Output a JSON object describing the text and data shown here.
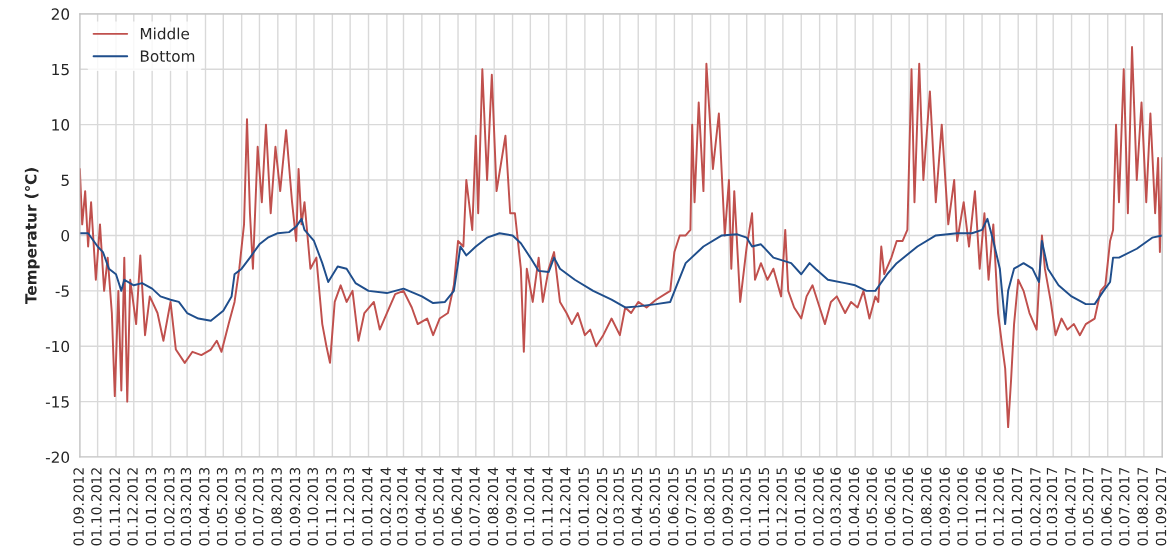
{
  "chart_data": {
    "type": "line",
    "ylabel": "Temperatur (℃)",
    "xlim": [
      "2012-09-01",
      "2017-09-01"
    ],
    "xticks": [
      {
        "value": "2012-09-01",
        "label": "01.09.2012"
      },
      {
        "value": "2012-10-01",
        "label": "01.10.2012"
      },
      {
        "value": "2012-11-01",
        "label": "01.11.2012"
      },
      {
        "value": "2012-12-01",
        "label": "01.12.2012"
      },
      {
        "value": "2013-01-01",
        "label": "01.01.2013"
      },
      {
        "value": "2013-02-01",
        "label": "01.02.2013"
      },
      {
        "value": "2013-03-01",
        "label": "01.03.2013"
      },
      {
        "value": "2013-04-01",
        "label": "01.04.2013"
      },
      {
        "value": "2013-05-01",
        "label": "01.05.2013"
      },
      {
        "value": "2013-06-01",
        "label": "01.06.2013"
      },
      {
        "value": "2013-07-01",
        "label": "01.07.2013"
      },
      {
        "value": "2013-08-01",
        "label": "01.08.2013"
      },
      {
        "value": "2013-09-01",
        "label": "01.09.2013"
      },
      {
        "value": "2013-10-01",
        "label": "01.10.2013"
      },
      {
        "value": "2013-11-01",
        "label": "01.11.2013"
      },
      {
        "value": "2013-12-01",
        "label": "01.12.2013"
      },
      {
        "value": "2014-01-01",
        "label": "01.01.2014"
      },
      {
        "value": "2014-02-01",
        "label": "01.02.2014"
      },
      {
        "value": "2014-03-01",
        "label": "01.03.2014"
      },
      {
        "value": "2014-04-01",
        "label": "01.04.2014"
      },
      {
        "value": "2014-05-01",
        "label": "01.05.2014"
      },
      {
        "value": "2014-06-01",
        "label": "01.06.2014"
      },
      {
        "value": "2014-07-01",
        "label": "01.07.2014"
      },
      {
        "value": "2014-08-01",
        "label": "01.08.2014"
      },
      {
        "value": "2014-09-01",
        "label": "01.09.2014"
      },
      {
        "value": "2014-10-01",
        "label": "01.10.2014"
      },
      {
        "value": "2014-11-01",
        "label": "01.11.2014"
      },
      {
        "value": "2014-12-01",
        "label": "01.12.2014"
      },
      {
        "value": "2015-01-01",
        "label": "01.01.2015"
      },
      {
        "value": "2015-02-01",
        "label": "01.02.2015"
      },
      {
        "value": "2015-03-01",
        "label": "01.03.2015"
      },
      {
        "value": "2015-04-01",
        "label": "01.04.2015"
      },
      {
        "value": "2015-05-01",
        "label": "01.05.2015"
      },
      {
        "value": "2015-06-01",
        "label": "01.06.2015"
      },
      {
        "value": "2015-07-01",
        "label": "01.07.2015"
      },
      {
        "value": "2015-08-01",
        "label": "01.08.2015"
      },
      {
        "value": "2015-09-01",
        "label": "01.09.2015"
      },
      {
        "value": "2015-10-01",
        "label": "01.10.2015"
      },
      {
        "value": "2015-11-01",
        "label": "01.11.2015"
      },
      {
        "value": "2015-12-01",
        "label": "01.12.2015"
      },
      {
        "value": "2016-01-01",
        "label": "01.01.2016"
      },
      {
        "value": "2016-02-01",
        "label": "01.02.2016"
      },
      {
        "value": "2016-03-01",
        "label": "01.03.2016"
      },
      {
        "value": "2016-04-01",
        "label": "01.04.2016"
      },
      {
        "value": "2016-05-01",
        "label": "01.05.2016"
      },
      {
        "value": "2016-06-01",
        "label": "01.06.2016"
      },
      {
        "value": "2016-07-01",
        "label": "01.07.2016"
      },
      {
        "value": "2016-08-01",
        "label": "01.08.2016"
      },
      {
        "value": "2016-09-01",
        "label": "01.09.2016"
      },
      {
        "value": "2016-10-01",
        "label": "01.10.2016"
      },
      {
        "value": "2016-11-01",
        "label": "01.11.2016"
      },
      {
        "value": "2016-12-01",
        "label": "01.12.2016"
      },
      {
        "value": "2017-01-01",
        "label": "01.01.2017"
      },
      {
        "value": "2017-02-01",
        "label": "01.02.2017"
      },
      {
        "value": "2017-03-01",
        "label": "01.03.2017"
      },
      {
        "value": "2017-04-01",
        "label": "01.04.2017"
      },
      {
        "value": "2017-05-01",
        "label": "01.05.2017"
      },
      {
        "value": "2017-06-01",
        "label": "01.06.2017"
      },
      {
        "value": "2017-07-01",
        "label": "01.07.2017"
      },
      {
        "value": "2017-08-01",
        "label": "01.08.2017"
      },
      {
        "value": "2017-09-01",
        "label": "01.09.2017"
      }
    ],
    "ylim": [
      -20,
      20
    ],
    "yticks": [
      -20,
      -15,
      -10,
      -5,
      0,
      5,
      10,
      15,
      20
    ],
    "grid": true,
    "legend": "top left",
    "line_style": "solid",
    "marker": "none",
    "series": [
      {
        "name": "Middle",
        "color": "#c0504d",
        "x": [
          "2012-09-01",
          "2012-09-05",
          "2012-09-10",
          "2012-09-15",
          "2012-09-20",
          "2012-09-28",
          "2012-10-05",
          "2012-10-12",
          "2012-10-18",
          "2012-10-25",
          "2012-10-30",
          "2012-11-05",
          "2012-11-10",
          "2012-11-15",
          "2012-11-20",
          "2012-11-25",
          "2012-12-05",
          "2012-12-12",
          "2012-12-20",
          "2012-12-28",
          "2013-01-10",
          "2013-01-20",
          "2013-02-01",
          "2013-02-10",
          "2013-02-25",
          "2013-03-10",
          "2013-03-25",
          "2013-04-10",
          "2013-04-20",
          "2013-04-28",
          "2013-05-10",
          "2013-05-20",
          "2013-05-28",
          "2013-06-05",
          "2013-06-10",
          "2013-06-15",
          "2013-06-20",
          "2013-06-28",
          "2013-07-05",
          "2013-07-12",
          "2013-07-20",
          "2013-07-28",
          "2013-08-05",
          "2013-08-15",
          "2013-08-25",
          "2013-09-01",
          "2013-09-05",
          "2013-09-10",
          "2013-09-15",
          "2013-09-25",
          "2013-10-05",
          "2013-10-15",
          "2013-10-22",
          "2013-10-28",
          "2013-11-05",
          "2013-11-15",
          "2013-11-25",
          "2013-12-05",
          "2013-12-15",
          "2013-12-25",
          "2014-01-10",
          "2014-01-20",
          "2014-02-01",
          "2014-02-15",
          "2014-03-01",
          "2014-03-15",
          "2014-03-25",
          "2014-04-10",
          "2014-04-20",
          "2014-05-01",
          "2014-05-15",
          "2014-05-25",
          "2014-06-01",
          "2014-06-10",
          "2014-06-15",
          "2014-06-25",
          "2014-07-01",
          "2014-07-05",
          "2014-07-12",
          "2014-07-20",
          "2014-07-28",
          "2014-08-05",
          "2014-08-20",
          "2014-08-28",
          "2014-09-05",
          "2014-09-15",
          "2014-09-20",
          "2014-09-25",
          "2014-10-05",
          "2014-10-15",
          "2014-10-22",
          "2014-11-01",
          "2014-11-10",
          "2014-11-20",
          "2014-12-01",
          "2014-12-10",
          "2014-12-20",
          "2015-01-01",
          "2015-01-10",
          "2015-01-20",
          "2015-02-01",
          "2015-02-15",
          "2015-03-01",
          "2015-03-10",
          "2015-03-20",
          "2015-04-01",
          "2015-04-15",
          "2015-05-01",
          "2015-05-25",
          "2015-06-01",
          "2015-06-10",
          "2015-06-20",
          "2015-06-28",
          "2015-07-01",
          "2015-07-05",
          "2015-07-12",
          "2015-07-20",
          "2015-07-25",
          "2015-08-05",
          "2015-08-15",
          "2015-08-25",
          "2015-09-01",
          "2015-09-05",
          "2015-09-10",
          "2015-09-20",
          "2015-10-01",
          "2015-10-10",
          "2015-10-15",
          "2015-10-25",
          "2015-11-05",
          "2015-11-15",
          "2015-11-28",
          "2015-12-05",
          "2015-12-10",
          "2015-12-20",
          "2016-01-01",
          "2016-01-10",
          "2016-01-20",
          "2016-02-01",
          "2016-02-10",
          "2016-02-20",
          "2016-03-01",
          "2016-03-15",
          "2016-03-25",
          "2016-04-05",
          "2016-04-15",
          "2016-04-25",
          "2016-05-05",
          "2016-05-10",
          "2016-05-15",
          "2016-05-20",
          "2016-06-01",
          "2016-06-10",
          "2016-06-20",
          "2016-06-28",
          "2016-07-05",
          "2016-07-10",
          "2016-07-18",
          "2016-07-25",
          "2016-08-05",
          "2016-08-15",
          "2016-08-25",
          "2016-09-05",
          "2016-09-15",
          "2016-09-20",
          "2016-10-01",
          "2016-10-10",
          "2016-10-20",
          "2016-10-28",
          "2016-11-05",
          "2016-11-12",
          "2016-11-20",
          "2016-11-28",
          "2016-12-05",
          "2016-12-10",
          "2016-12-15",
          "2016-12-20",
          "2016-12-25",
          "2017-01-01",
          "2017-01-10",
          "2017-01-20",
          "2017-02-01",
          "2017-02-05",
          "2017-02-10",
          "2017-02-15",
          "2017-02-25",
          "2017-03-05",
          "2017-03-15",
          "2017-03-25",
          "2017-04-05",
          "2017-04-15",
          "2017-04-25",
          "2017-05-10",
          "2017-05-20",
          "2017-05-28",
          "2017-06-05",
          "2017-06-10",
          "2017-06-15",
          "2017-06-20",
          "2017-06-28",
          "2017-07-05",
          "2017-07-12",
          "2017-07-20",
          "2017-07-28",
          "2017-08-05",
          "2017-08-12",
          "2017-08-20",
          "2017-08-25",
          "2017-08-28",
          "2017-09-01"
        ],
        "values": [
          6,
          1,
          4,
          -1,
          3,
          -4,
          1,
          -5,
          -2,
          -7,
          -14.5,
          -5,
          -14,
          -2,
          -15,
          -4,
          -8,
          -1.8,
          -9,
          -5.5,
          -7,
          -9.5,
          -6,
          -10.3,
          -11.5,
          -10.5,
          -10.8,
          -10.3,
          -9.5,
          -10.5,
          -8,
          -6,
          -3,
          1,
          10.5,
          2,
          -3,
          8,
          3,
          10,
          2,
          8,
          4,
          9.5,
          3,
          -0.5,
          6,
          1,
          3,
          -3,
          -2,
          -8,
          -10,
          -11.5,
          -6,
          -4.5,
          -6,
          -5,
          -9.5,
          -7,
          -6,
          -8.5,
          -7,
          -5.3,
          -5,
          -6.5,
          -8,
          -7.5,
          -9,
          -7.5,
          -7,
          -4.5,
          -0.5,
          -1,
          5,
          0.5,
          9,
          2,
          15,
          5,
          14.5,
          4,
          9,
          2,
          2,
          -3,
          -10.5,
          -3,
          -6,
          -2,
          -6,
          -3,
          -1.5,
          -6,
          -7,
          -8,
          -7,
          -9,
          -8.5,
          -10,
          -9,
          -7.5,
          -9,
          -6.5,
          -7,
          -6,
          -6.5,
          -5.8,
          -5,
          -1.5,
          0,
          0,
          0.5,
          10,
          3,
          12,
          4,
          15.5,
          6,
          11,
          0,
          5,
          -3,
          4,
          -6,
          -1,
          2,
          -4,
          -2.5,
          -4,
          -3,
          -5.5,
          0.5,
          -5,
          -6.5,
          -7.5,
          -5.5,
          -4.5,
          -6.5,
          -8,
          -6,
          -5.5,
          -7,
          -6,
          -6.5,
          -5,
          -7.5,
          -5.5,
          -6,
          -1,
          -3.5,
          -2,
          -0.5,
          -0.5,
          0.5,
          15,
          3,
          15.5,
          5,
          13,
          3,
          10,
          1,
          5,
          -0.5,
          3,
          -1,
          4,
          -3,
          2,
          -4,
          1,
          -7,
          -10,
          -12,
          -17.3,
          -13,
          -8,
          -4,
          -5,
          -7,
          -8.5,
          -4.5,
          0,
          -3,
          -6,
          -9,
          -7.5,
          -8.5,
          -8,
          -9,
          -8,
          -7.5,
          -5,
          -4.5,
          -0.5,
          0.5,
          10,
          3,
          15,
          2,
          17,
          5,
          12,
          3,
          11,
          2,
          7,
          -1.5,
          7
        ]
      },
      {
        "name": "Bottom",
        "color": "#1f4e8c",
        "x": [
          "2012-09-01",
          "2012-09-15",
          "2012-10-01",
          "2012-10-10",
          "2012-10-20",
          "2012-11-01",
          "2012-11-10",
          "2012-11-15",
          "2012-12-01",
          "2012-12-15",
          "2013-01-01",
          "2013-01-15",
          "2013-02-01",
          "2013-02-15",
          "2013-03-01",
          "2013-03-20",
          "2013-04-10",
          "2013-05-01",
          "2013-05-15",
          "2013-05-20",
          "2013-06-01",
          "2013-06-15",
          "2013-07-01",
          "2013-07-15",
          "2013-08-01",
          "2013-08-20",
          "2013-09-01",
          "2013-09-10",
          "2013-09-15",
          "2013-10-01",
          "2013-10-15",
          "2013-10-25",
          "2013-11-10",
          "2013-11-25",
          "2013-12-10",
          "2014-01-01",
          "2014-02-01",
          "2014-03-01",
          "2014-04-01",
          "2014-04-20",
          "2014-05-10",
          "2014-05-25",
          "2014-06-01",
          "2014-06-05",
          "2014-06-15",
          "2014-07-01",
          "2014-07-20",
          "2014-08-10",
          "2014-09-01",
          "2014-09-15",
          "2014-10-01",
          "2014-10-15",
          "2014-11-01",
          "2014-11-10",
          "2014-11-20",
          "2014-12-15",
          "2015-01-15",
          "2015-02-15",
          "2015-03-10",
          "2015-04-01",
          "2015-05-01",
          "2015-05-25",
          "2015-06-05",
          "2015-06-20",
          "2015-07-20",
          "2015-08-20",
          "2015-09-15",
          "2015-10-01",
          "2015-10-10",
          "2015-10-25",
          "2015-11-15",
          "2015-12-15",
          "2016-01-01",
          "2016-01-15",
          "2016-01-25",
          "2016-02-15",
          "2016-03-15",
          "2016-04-01",
          "2016-04-20",
          "2016-05-05",
          "2016-05-25",
          "2016-06-10",
          "2016-07-15",
          "2016-08-15",
          "2016-09-20",
          "2016-10-15",
          "2016-11-01",
          "2016-11-10",
          "2016-11-20",
          "2016-12-01",
          "2016-12-10",
          "2016-12-15",
          "2016-12-25",
          "2017-01-10",
          "2017-01-25",
          "2017-02-05",
          "2017-02-10",
          "2017-02-20",
          "2017-03-10",
          "2017-04-01",
          "2017-04-25",
          "2017-05-10",
          "2017-05-25",
          "2017-06-05",
          "2017-06-10",
          "2017-06-20",
          "2017-07-20",
          "2017-08-15",
          "2017-09-01"
        ],
        "values": [
          0.2,
          0.2,
          -1,
          -1.5,
          -3,
          -3.5,
          -5,
          -4,
          -4.5,
          -4.3,
          -4.8,
          -5.5,
          -5.8,
          -6,
          -7,
          -7.5,
          -7.7,
          -6.8,
          -5.5,
          -3.5,
          -3,
          -2,
          -0.8,
          -0.2,
          0.2,
          0.3,
          0.8,
          1.5,
          0.5,
          -0.5,
          -2.5,
          -4.2,
          -2.8,
          -3,
          -4.3,
          -5,
          -5.2,
          -4.8,
          -5.5,
          -6.1,
          -6,
          -5,
          -2.5,
          -1,
          -1.8,
          -1,
          -0.2,
          0.2,
          0,
          -0.7,
          -2,
          -3.2,
          -3.3,
          -2,
          -3,
          -4,
          -5,
          -5.8,
          -6.5,
          -6.4,
          -6.2,
          -6,
          -4.5,
          -2.5,
          -1,
          0,
          0.1,
          -0.2,
          -1,
          -0.8,
          -2,
          -2.5,
          -3.5,
          -2.5,
          -3,
          -4,
          -4.3,
          -4.5,
          -5,
          -5,
          -3.5,
          -2.5,
          -1,
          0,
          0.2,
          0.2,
          0.5,
          1.5,
          -0.5,
          -3,
          -8,
          -5,
          -3,
          -2.5,
          -3,
          -4.2,
          -0.5,
          -3,
          -4.5,
          -5.5,
          -6.2,
          -6.2,
          -5,
          -4.2,
          -2,
          -2,
          -1.2,
          -0.2,
          0
        ]
      }
    ]
  }
}
